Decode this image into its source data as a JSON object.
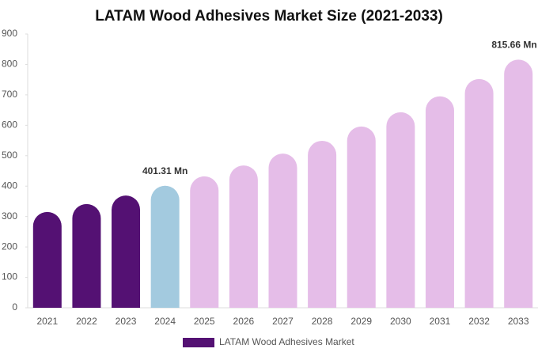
{
  "chart_data": {
    "type": "bar",
    "title": "LATAM Wood Adhesives Market Size (2021-2033)",
    "categories": [
      "2021",
      "2022",
      "2023",
      "2024",
      "2025",
      "2026",
      "2027",
      "2028",
      "2029",
      "2030",
      "2031",
      "2032",
      "2033"
    ],
    "series": [
      {
        "name": "LATAM Wood Adhesives Market",
        "color": "#541173",
        "values": [
          315,
          341,
          369,
          401.31,
          432,
          468,
          507,
          549,
          596,
          643,
          695,
          752,
          815.66
        ],
        "value_labels": [
          null,
          null,
          null,
          "401.31 Mn",
          null,
          null,
          null,
          null,
          null,
          null,
          null,
          null,
          "815.66 Mn"
        ],
        "bar_colors": [
          "#541173",
          "#541173",
          "#541173",
          "#a3cadf",
          "#e5bde8",
          "#e5bde8",
          "#e5bde8",
          "#e5bde8",
          "#e5bde8",
          "#e5bde8",
          "#e5bde8",
          "#e5bde8",
          "#e5bde8"
        ]
      }
    ],
    "ylim": [
      0,
      900
    ],
    "yticks": [
      0,
      100,
      200,
      300,
      400,
      500,
      600,
      700,
      800,
      900
    ]
  }
}
